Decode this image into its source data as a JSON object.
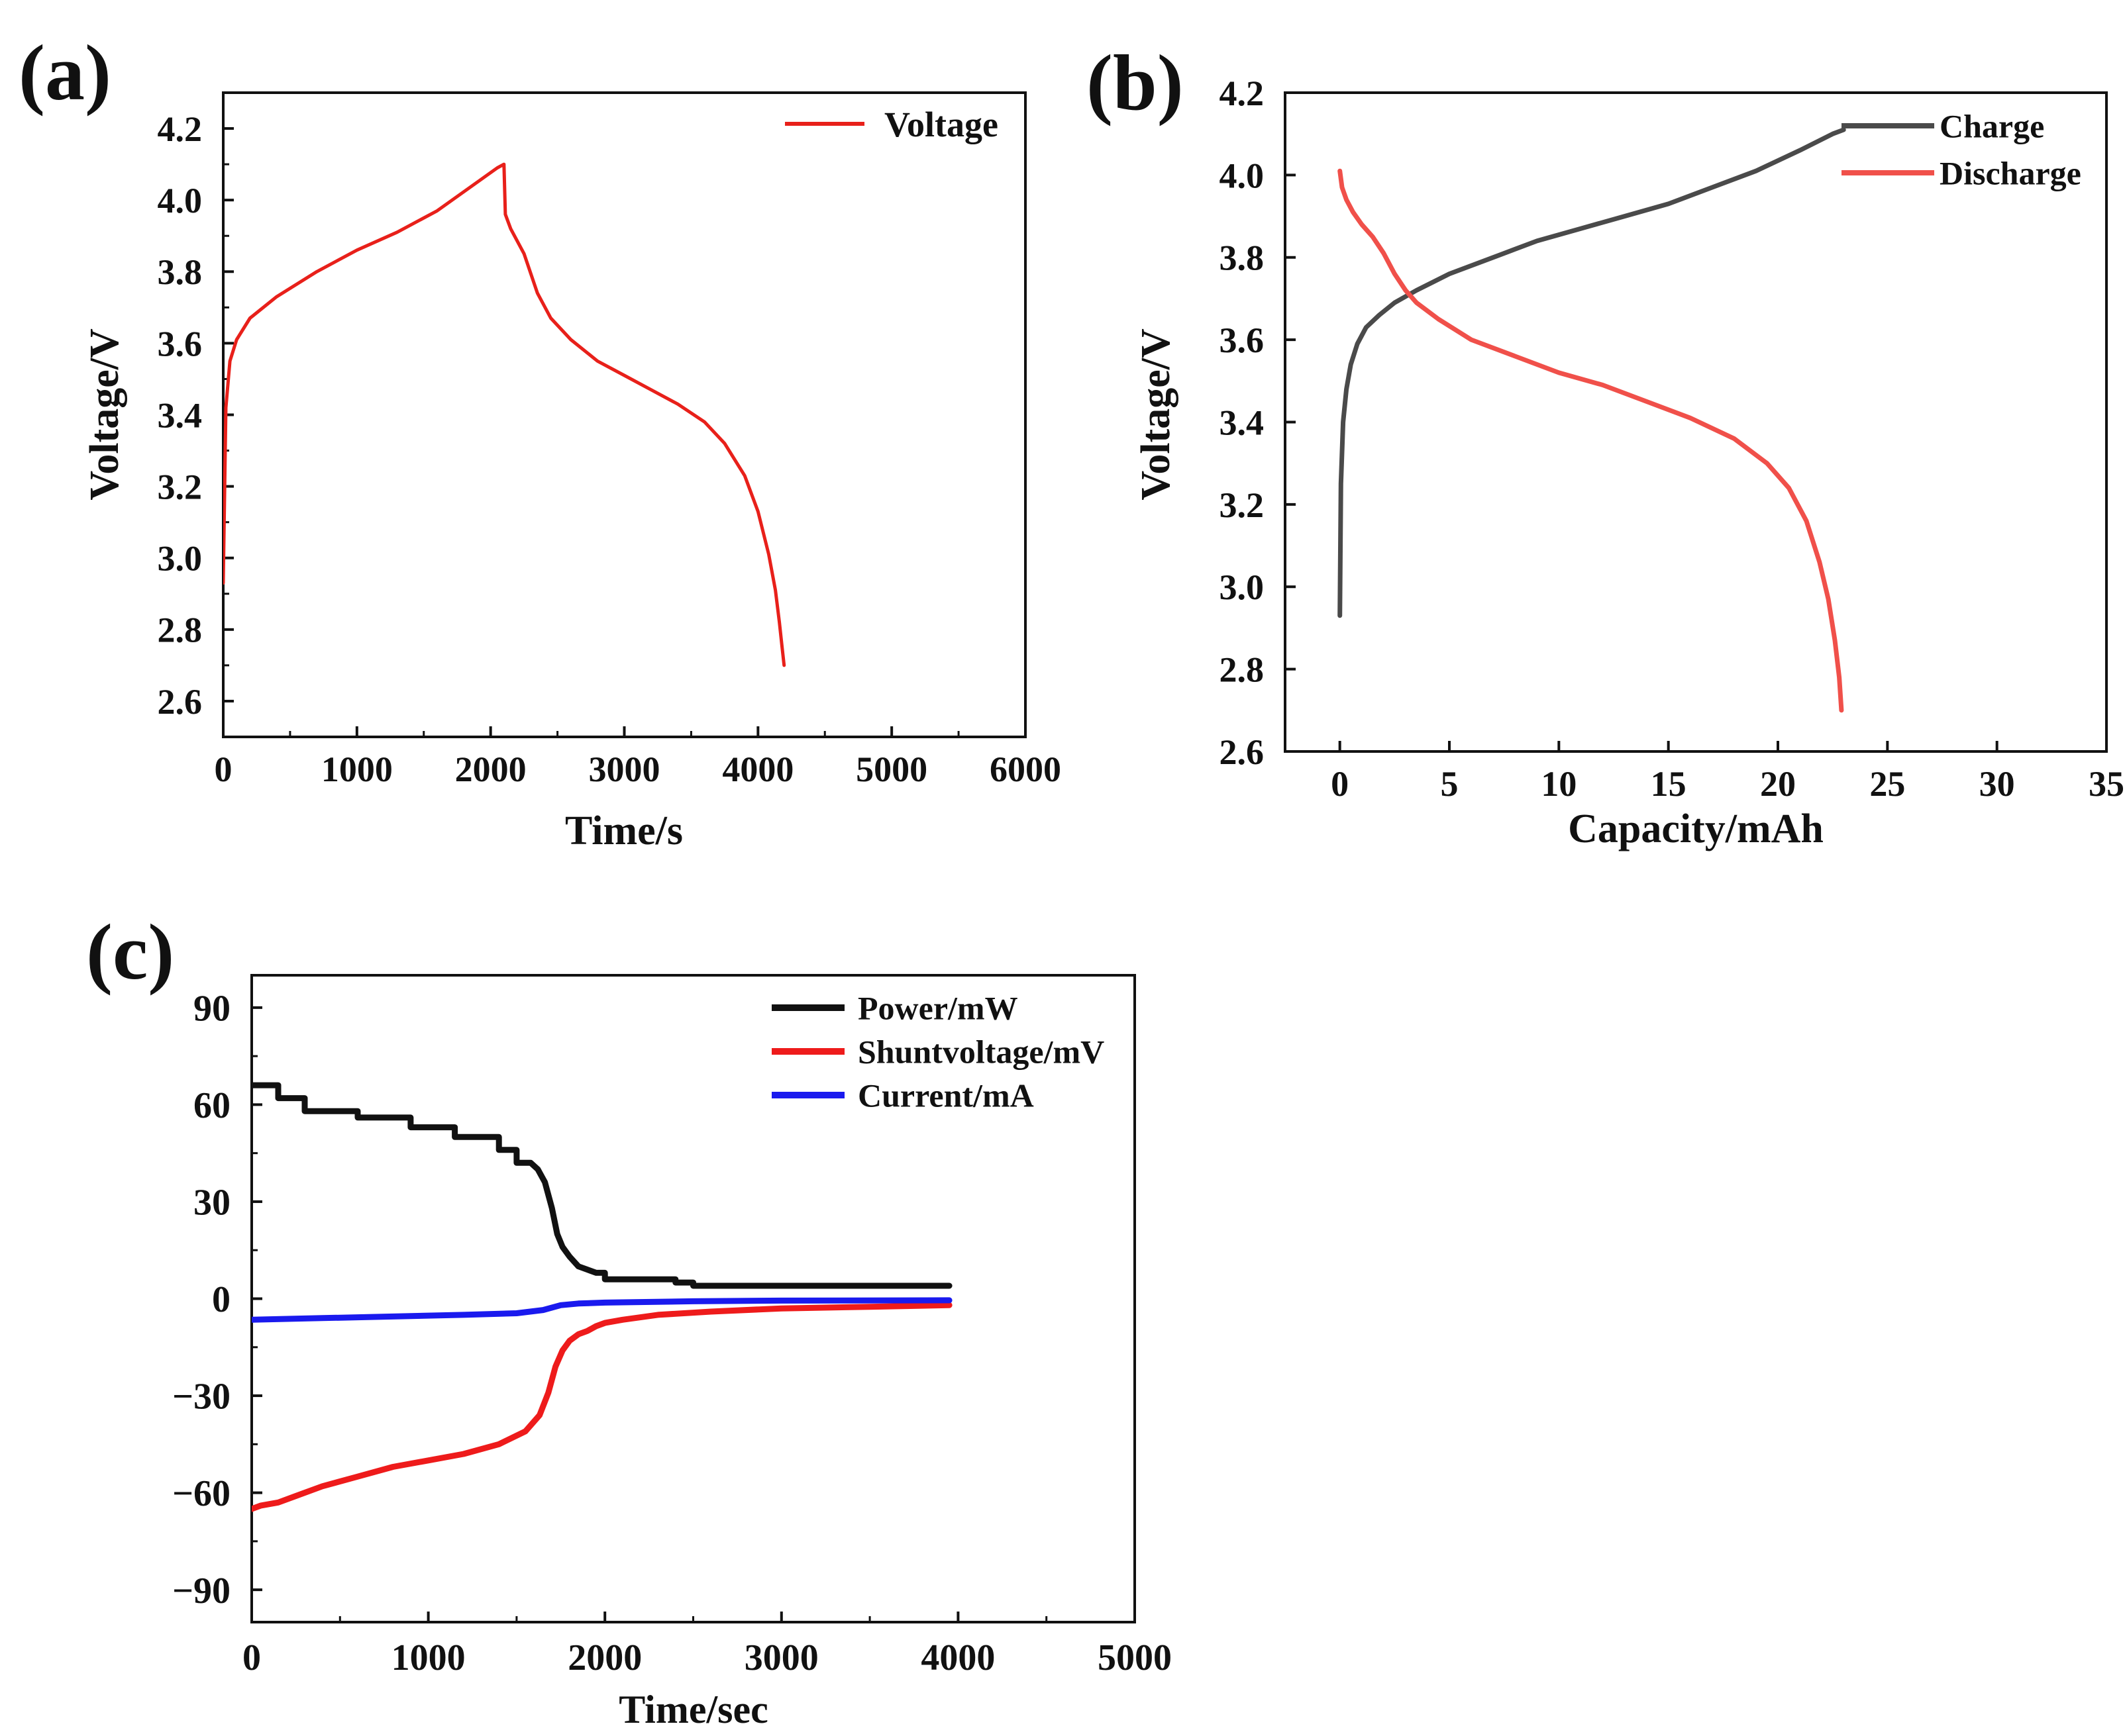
{
  "chart_data": [
    {
      "id": "a",
      "panel_label": "(a)",
      "type": "line",
      "xlabel": "Time/s",
      "ylabel": "Voltage/V",
      "xlim": [
        0,
        6000
      ],
      "ylim": [
        2.5,
        4.3
      ],
      "xticks": [
        0,
        1000,
        2000,
        3000,
        4000,
        5000,
        6000
      ],
      "xtick_labels": [
        "0",
        "1000",
        "2000",
        "3000",
        "4000",
        "5000",
        "6000"
      ],
      "yticks": [
        2.6,
        2.8,
        3.0,
        3.2,
        3.4,
        3.6,
        3.8,
        4.0,
        4.2
      ],
      "ytick_labels": [
        "2.6",
        "2.8",
        "3.0",
        "3.2",
        "3.4",
        "3.6",
        "3.8",
        "4.0",
        "4.2"
      ],
      "legend_position": "top-right",
      "series": [
        {
          "name": "Voltage",
          "color": "#e8201a",
          "x": [
            0,
            20,
            50,
            100,
            200,
            400,
            700,
            1000,
            1300,
            1600,
            1900,
            2050,
            2100,
            2110,
            2150,
            2250,
            2350,
            2450,
            2600,
            2800,
            3000,
            3200,
            3400,
            3600,
            3750,
            3900,
            4000,
            4080,
            4130,
            4160,
            4180,
            4195
          ],
          "y": [
            2.93,
            3.42,
            3.55,
            3.61,
            3.67,
            3.73,
            3.8,
            3.86,
            3.91,
            3.97,
            4.05,
            4.09,
            4.1,
            3.96,
            3.92,
            3.85,
            3.74,
            3.67,
            3.61,
            3.55,
            3.51,
            3.47,
            3.43,
            3.38,
            3.32,
            3.23,
            3.13,
            3.01,
            2.91,
            2.82,
            2.75,
            2.7
          ]
        }
      ]
    },
    {
      "id": "b",
      "panel_label": "(b)",
      "type": "line",
      "xlabel": "Capacity/mAh",
      "ylabel": "Voltage/V",
      "xlim": [
        -2.5,
        35
      ],
      "ylim": [
        2.6,
        4.2
      ],
      "xticks": [
        0,
        5,
        10,
        15,
        20,
        25,
        30,
        35
      ],
      "xtick_labels": [
        "0",
        "5",
        "10",
        "15",
        "20",
        "25",
        "30",
        "35"
      ],
      "yticks": [
        2.6,
        2.8,
        3.0,
        3.2,
        3.4,
        3.6,
        3.8,
        4.0,
        4.2
      ],
      "ytick_labels": [
        "2.6",
        "2.8",
        "3.0",
        "3.2",
        "3.4",
        "3.6",
        "3.8",
        "4.0",
        "4.2"
      ],
      "legend_position": "top-right",
      "series": [
        {
          "name": "Charge",
          "color": "#4a4a4a",
          "x": [
            0,
            0.05,
            0.15,
            0.3,
            0.5,
            0.8,
            1.2,
            1.8,
            2.5,
            3.5,
            5,
            7,
            9,
            11,
            13,
            15,
            17,
            19,
            21,
            22.5,
            23
          ],
          "y": [
            2.93,
            3.25,
            3.4,
            3.48,
            3.54,
            3.59,
            3.63,
            3.66,
            3.69,
            3.72,
            3.76,
            3.8,
            3.84,
            3.87,
            3.9,
            3.93,
            3.97,
            4.01,
            4.06,
            4.1,
            4.11
          ]
        },
        {
          "name": "Discharge",
          "color": "#f0504a",
          "x": [
            0,
            0.1,
            0.3,
            0.6,
            1.0,
            1.5,
            2.0,
            2.5,
            3.0,
            3.5,
            4.5,
            6,
            8,
            10,
            12,
            14,
            16,
            18,
            19.5,
            20.5,
            21.3,
            21.9,
            22.3,
            22.6,
            22.8,
            22.9
          ],
          "y": [
            4.01,
            3.97,
            3.94,
            3.91,
            3.88,
            3.85,
            3.81,
            3.76,
            3.72,
            3.69,
            3.65,
            3.6,
            3.56,
            3.52,
            3.49,
            3.45,
            3.41,
            3.36,
            3.3,
            3.24,
            3.16,
            3.06,
            2.97,
            2.87,
            2.78,
            2.7
          ]
        }
      ]
    },
    {
      "id": "c",
      "panel_label": "(c)",
      "type": "line",
      "xlabel": "Time/sec",
      "ylabel": "",
      "xlim": [
        0,
        5000
      ],
      "ylim": [
        -100,
        100
      ],
      "xticks": [
        0,
        1000,
        2000,
        3000,
        4000,
        5000
      ],
      "xtick_labels": [
        "0",
        "1000",
        "2000",
        "3000",
        "4000",
        "5000"
      ],
      "yticks": [
        -90,
        -60,
        -30,
        0,
        30,
        60,
        90
      ],
      "ytick_labels": [
        "−90",
        "−60",
        "−30",
        "0",
        "30",
        "60",
        "90"
      ],
      "legend_position": "top-right",
      "series": [
        {
          "name": "Power/mW",
          "color": "#111111",
          "x": [
            0,
            150,
            150,
            300,
            300,
            600,
            600,
            900,
            900,
            1150,
            1150,
            1400,
            1400,
            1500,
            1500,
            1580,
            1620,
            1660,
            1700,
            1730,
            1760,
            1800,
            1850,
            1900,
            1950,
            2000,
            2000,
            2400,
            2400,
            2500,
            2500,
            3950
          ],
          "x_note": "",
          "y": [
            66,
            66,
            62,
            62,
            58,
            58,
            56,
            56,
            53,
            53,
            50,
            50,
            46,
            46,
            42,
            42,
            40,
            36,
            28,
            20,
            16,
            13,
            10,
            9,
            8,
            8,
            6,
            6,
            5,
            5,
            4,
            4
          ]
        },
        {
          "name": "Shuntvoltage/mV",
          "color": "#ee1b1b",
          "x": [
            0,
            50,
            150,
            250,
            400,
            600,
            800,
            1000,
            1200,
            1400,
            1550,
            1630,
            1680,
            1720,
            1760,
            1800,
            1850,
            1900,
            1950,
            2000,
            2100,
            2300,
            2600,
            3000,
            3500,
            3950
          ],
          "y": [
            -65,
            -64,
            -63,
            -61,
            -58,
            -55,
            -52,
            -50,
            -48,
            -45,
            -41,
            -36,
            -29,
            -21,
            -16,
            -13,
            -11,
            -10,
            -8.5,
            -7.5,
            -6.5,
            -5.0,
            -4.0,
            -3.0,
            -2.5,
            -2.0
          ]
        },
        {
          "name": "Current/mA",
          "color": "#1a1aee",
          "x": [
            0,
            400,
            800,
            1200,
            1500,
            1650,
            1750,
            1850,
            2000,
            2500,
            3000,
            3950
          ],
          "y": [
            -6.5,
            -6.0,
            -5.5,
            -5.0,
            -4.5,
            -3.5,
            -2.0,
            -1.5,
            -1.2,
            -0.8,
            -0.6,
            -0.5
          ]
        }
      ]
    }
  ]
}
